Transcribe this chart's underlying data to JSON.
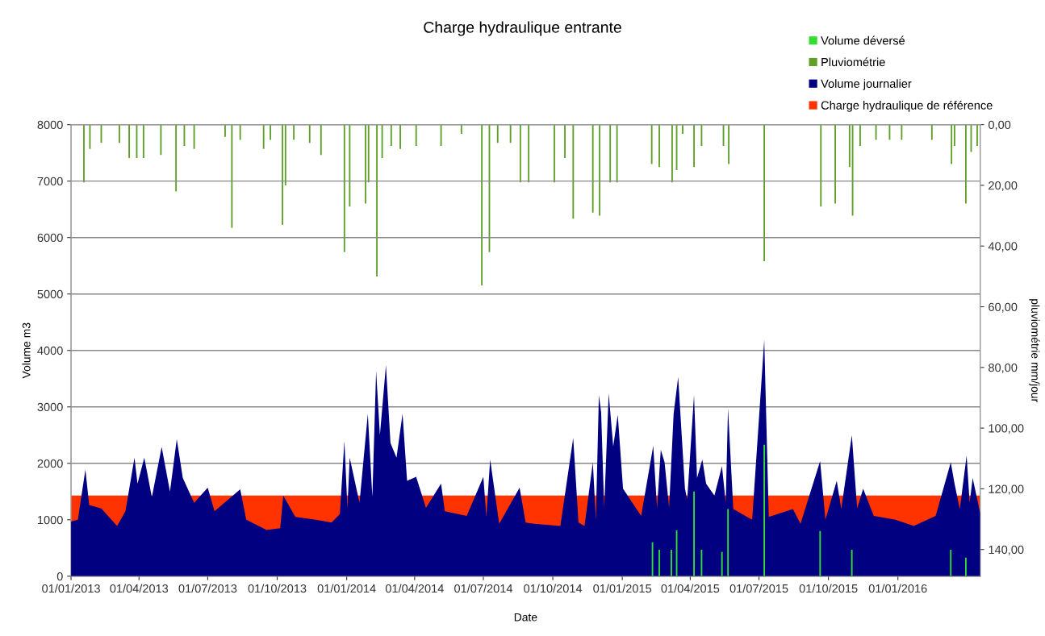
{
  "chart_data": {
    "type": "area",
    "title": "Charge hydraulique entrante",
    "xlabel": "Date",
    "ylabel": "Volume m3",
    "y2label": "pluviométrie mm/jour",
    "series": [
      {
        "name": "Charge hydraulique de référence",
        "type": "area",
        "color": "#ff3300",
        "x": [
          "2013-01-01",
          "2016-04-19"
        ],
        "values": [
          1430,
          1430
        ]
      },
      {
        "name": "Volume journalier",
        "color": "#000080",
        "x": [
          "2013-01-01",
          "2013-01-10",
          "2013-01-20",
          "2013-01-25",
          "2013-02-10",
          "2013-03-03",
          "2013-03-14",
          "2013-03-26",
          "2013-03-30",
          "2013-04-08",
          "2013-04-18",
          "2013-05-01",
          "2013-05-12",
          "2013-05-21",
          "2013-05-29",
          "2013-06-13",
          "2013-07-01",
          "2013-07-10",
          "2013-08-13",
          "2013-08-21",
          "2013-09-17",
          "2013-10-05",
          "2013-10-09",
          "2013-10-25",
          "2013-11-21",
          "2013-12-12",
          "2013-12-23",
          "2013-12-29",
          "2014-01-02",
          "2014-01-05",
          "2014-01-18",
          "2014-01-29",
          "2014-02-04",
          "2014-02-09",
          "2014-02-14",
          "2014-02-22",
          "2014-02-28",
          "2014-03-08",
          "2014-03-16",
          "2014-03-22",
          "2014-04-03",
          "2014-04-16",
          "2014-05-06",
          "2014-05-11",
          "2014-06-09",
          "2014-07-01",
          "2014-07-05",
          "2014-07-10",
          "2014-07-22",
          "2014-08-18",
          "2014-08-26",
          "2014-09-06",
          "2014-10-11",
          "2014-10-28",
          "2014-11-04",
          "2014-11-12",
          "2014-11-23",
          "2014-11-27",
          "2014-12-01",
          "2014-12-04",
          "2014-12-08",
          "2014-12-14",
          "2014-12-20",
          "2014-12-26",
          "2015-01-02",
          "2015-01-26",
          "2015-02-11",
          "2015-02-16",
          "2015-02-21",
          "2015-02-26",
          "2015-03-04",
          "2015-03-10",
          "2015-03-16",
          "2015-03-25",
          "2015-03-28",
          "2015-04-06",
          "2015-04-10",
          "2015-04-17",
          "2015-04-22",
          "2015-05-03",
          "2015-05-13",
          "2015-05-18",
          "2015-05-21",
          "2015-05-28",
          "2015-06-22",
          "2015-07-08",
          "2015-07-14",
          "2015-08-15",
          "2015-08-25",
          "2015-09-20",
          "2015-09-27",
          "2015-10-12",
          "2015-10-18",
          "2015-11-01",
          "2015-11-08",
          "2015-11-16",
          "2015-11-30",
          "2015-12-29",
          "2016-01-22",
          "2016-02-20",
          "2016-03-11",
          "2016-03-16",
          "2016-03-23",
          "2016-04-01",
          "2016-04-05",
          "2016-04-09",
          "2016-04-19"
        ],
        "values": [
          970,
          1000,
          1890,
          1260,
          1200,
          890,
          1150,
          2100,
          1640,
          2100,
          1400,
          2290,
          1500,
          2430,
          1740,
          1300,
          1570,
          1150,
          1540,
          1000,
          820,
          850,
          1430,
          1050,
          1000,
          950,
          1100,
          2400,
          1200,
          2100,
          1300,
          2880,
          1400,
          3640,
          2500,
          3740,
          2360,
          2100,
          2880,
          1690,
          1760,
          1210,
          1640,
          1150,
          1070,
          1760,
          1050,
          2070,
          930,
          1570,
          950,
          930,
          890,
          2450,
          950,
          890,
          2020,
          1000,
          3210,
          2900,
          1210,
          3240,
          2300,
          2860,
          1550,
          1070,
          2310,
          1200,
          2240,
          2020,
          1210,
          2880,
          3530,
          1550,
          1360,
          3210,
          1740,
          2070,
          1640,
          1430,
          1950,
          1300,
          2980,
          1190,
          1000,
          4190,
          1050,
          1190,
          930,
          2040,
          1000,
          1690,
          1190,
          2500,
          1200,
          1550,
          1070,
          1000,
          890,
          1070,
          2020,
          1640,
          1190,
          2140,
          1300,
          1740,
          1120
        ]
      },
      {
        "name": "Volume déversé",
        "type": "bar",
        "color": "#33dd33",
        "x": [
          "2015-02-10",
          "2015-02-19",
          "2015-03-07",
          "2015-03-14",
          "2015-04-06",
          "2015-04-16",
          "2015-05-13",
          "2015-05-21",
          "2015-07-08",
          "2015-09-20",
          "2015-11-01",
          "2016-03-11",
          "2016-03-31"
        ],
        "values": [
          600,
          470,
          470,
          810,
          1500,
          470,
          430,
          1190,
          2330,
          800,
          470,
          470,
          330
        ]
      },
      {
        "name": "Pluviométrie",
        "type": "bar",
        "axis": "y2",
        "color": "#5fa02a",
        "x": [
          "2013-01-18",
          "2013-01-26",
          "2013-02-10",
          "2013-03-06",
          "2013-03-19",
          "2013-03-29",
          "2013-04-07",
          "2013-04-30",
          "2013-05-20",
          "2013-05-31",
          "2013-06-13",
          "2013-07-24",
          "2013-08-02",
          "2013-08-13",
          "2013-09-13",
          "2013-09-22",
          "2013-10-08",
          "2013-10-12",
          "2013-10-23",
          "2013-11-13",
          "2013-11-28",
          "2013-12-29",
          "2014-01-05",
          "2014-01-26",
          "2014-01-30",
          "2014-02-10",
          "2014-02-17",
          "2014-03-01",
          "2014-03-13",
          "2014-04-03",
          "2014-05-06",
          "2014-06-02",
          "2014-06-29",
          "2014-07-09",
          "2014-07-20",
          "2014-08-06",
          "2014-08-19",
          "2014-08-30",
          "2014-10-03",
          "2014-10-17",
          "2014-10-28",
          "2014-11-23",
          "2014-12-02",
          "2014-12-16",
          "2014-12-25",
          "2015-02-09",
          "2015-02-19",
          "2015-03-08",
          "2015-03-14",
          "2015-03-22",
          "2015-04-06",
          "2015-04-16",
          "2015-05-15",
          "2015-05-22",
          "2015-07-08",
          "2015-09-21",
          "2015-10-10",
          "2015-10-29",
          "2015-11-02",
          "2015-11-12",
          "2015-12-03",
          "2015-12-21",
          "2016-01-06",
          "2016-02-15",
          "2016-03-12",
          "2016-03-16",
          "2016-03-31",
          "2016-04-07",
          "2016-04-15"
        ],
        "values": [
          19,
          8,
          6,
          6,
          11,
          11,
          11,
          10,
          22,
          7,
          8,
          4,
          34,
          5,
          8,
          5,
          33,
          20,
          5,
          6,
          10,
          42,
          27,
          26,
          19,
          50,
          11,
          7,
          8,
          7,
          7,
          3,
          53,
          42,
          6,
          6,
          19,
          19,
          19,
          11,
          31,
          29,
          30,
          19,
          19,
          13,
          14,
          19,
          15,
          3,
          14,
          7,
          7,
          13,
          45,
          27,
          26,
          14,
          30,
          7,
          5,
          5,
          5,
          5,
          13,
          7,
          26,
          9,
          7
        ]
      }
    ],
    "xlim": [
      "2013-01-01",
      "2016-04-19"
    ],
    "xticks": [
      {
        "value": "2013-01-01",
        "label": "01/01/2013"
      },
      {
        "value": "2013-04-01",
        "label": "01/04/2013"
      },
      {
        "value": "2013-07-01",
        "label": "01/07/2013"
      },
      {
        "value": "2013-10-01",
        "label": "01/10/2013"
      },
      {
        "value": "2014-01-01",
        "label": "01/01/2014"
      },
      {
        "value": "2014-04-01",
        "label": "01/04/2014"
      },
      {
        "value": "2014-07-01",
        "label": "01/07/2014"
      },
      {
        "value": "2014-10-01",
        "label": "01/10/2014"
      },
      {
        "value": "2015-01-01",
        "label": "01/01/2015"
      },
      {
        "value": "2015-04-01",
        "label": "01/04/2015"
      },
      {
        "value": "2015-07-01",
        "label": "01/07/2015"
      },
      {
        "value": "2015-10-01",
        "label": "01/10/2015"
      },
      {
        "value": "2016-01-01",
        "label": "01/01/2016"
      }
    ],
    "ylim": [
      0,
      8000
    ],
    "yticks": [
      0,
      1000,
      2000,
      3000,
      4000,
      5000,
      6000,
      7000,
      8000
    ],
    "y2lim": [
      148.8,
      0
    ],
    "y2ticks": [
      {
        "value": 0,
        "label": "0,00"
      },
      {
        "value": 20,
        "label": "20,00"
      },
      {
        "value": 40,
        "label": "40,00"
      },
      {
        "value": 60,
        "label": "60,00"
      },
      {
        "value": 80,
        "label": "80,00"
      },
      {
        "value": 100,
        "label": "100,00"
      },
      {
        "value": 120,
        "label": "120,00"
      },
      {
        "value": 140,
        "label": "140,00"
      }
    ],
    "grid": "y",
    "legend": "top right"
  }
}
